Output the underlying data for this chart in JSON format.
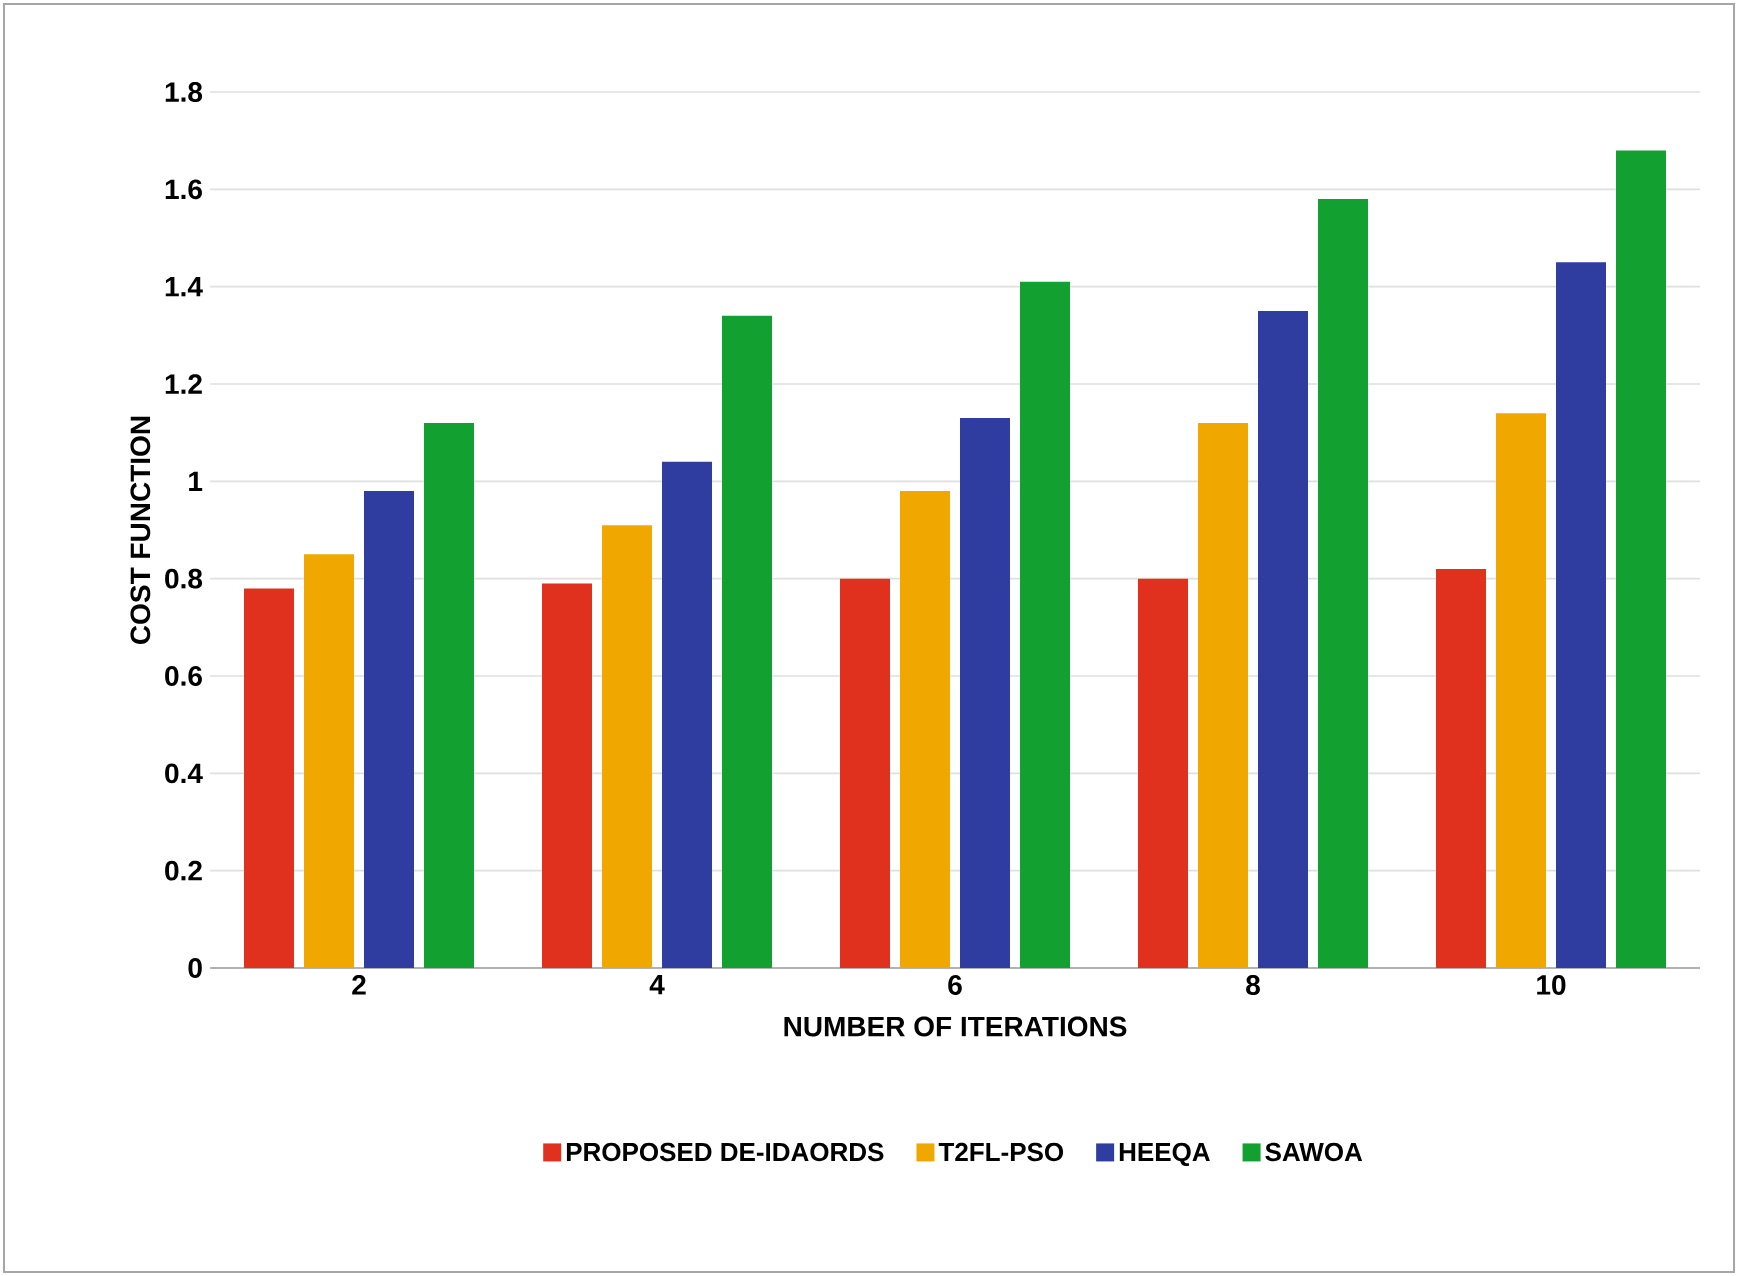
{
  "chart_data": {
    "type": "bar",
    "xlabel": "NUMBER OF ITERATIONS",
    "ylabel": "COST FUNCTION",
    "categories": [
      "2",
      "4",
      "6",
      "8",
      "10"
    ],
    "series": [
      {
        "name": "PROPOSED DE-IDAORDS",
        "color": "#e0301e",
        "values": [
          0.78,
          0.79,
          0.8,
          0.8,
          0.82
        ]
      },
      {
        "name": "T2FL-PSO",
        "color": "#f0a800",
        "values": [
          0.85,
          0.91,
          0.98,
          1.12,
          1.14
        ]
      },
      {
        "name": "HEEQA",
        "color": "#2e3d9f",
        "values": [
          0.98,
          1.04,
          1.13,
          1.35,
          1.45
        ]
      },
      {
        "name": "SAWOA",
        "color": "#12a030",
        "values": [
          1.12,
          1.34,
          1.41,
          1.58,
          1.68
        ]
      }
    ],
    "ylim": [
      0,
      1.8
    ],
    "yticks": [
      0,
      0.2,
      0.4,
      0.6,
      0.8,
      1,
      1.2,
      1.4,
      1.6,
      1.8
    ],
    "grid": "y",
    "legend": "bottom"
  }
}
